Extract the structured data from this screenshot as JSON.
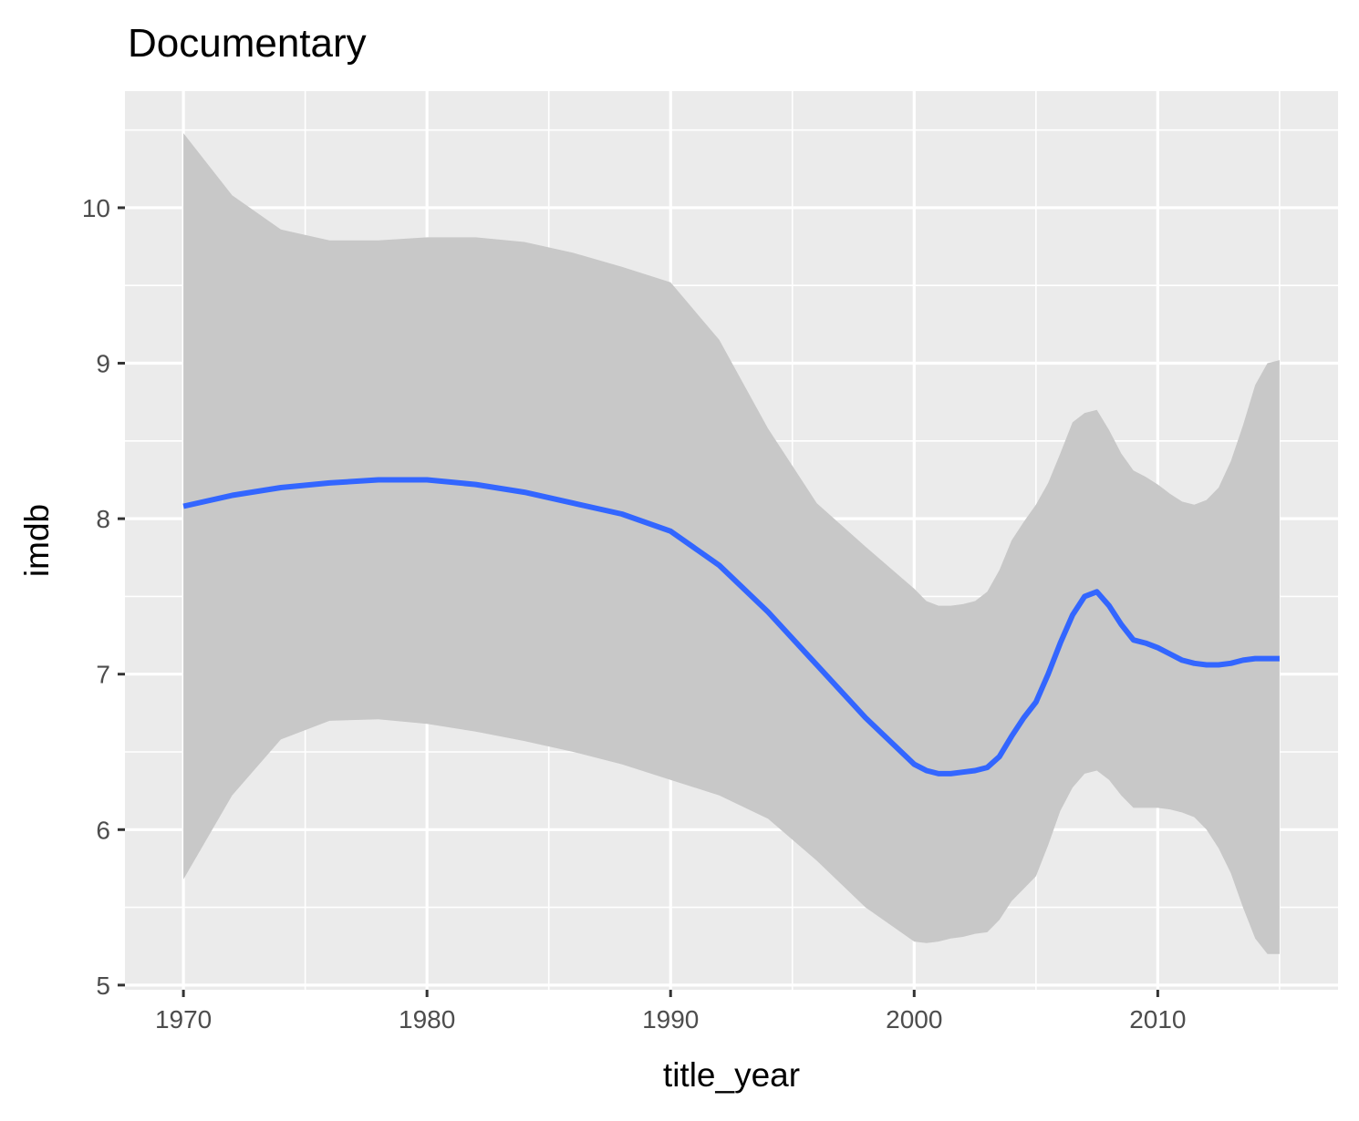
{
  "chart_data": {
    "type": "line",
    "title": "Documentary",
    "xlabel": "title_year",
    "ylabel": "imdb",
    "xlim": [
      1967.6,
      2017.4
    ],
    "ylim": [
      4.97,
      10.75
    ],
    "x_ticks": [
      1970,
      1980,
      1990,
      2000,
      2010
    ],
    "y_ticks": [
      5,
      6,
      7,
      8,
      9,
      10
    ],
    "x_tick_labels": [
      "1970",
      "1980",
      "1990",
      "2000",
      "2010"
    ],
    "y_tick_labels": [
      "5",
      "6",
      "7",
      "8",
      "9",
      "10"
    ],
    "grid": true,
    "legend": "none",
    "colors": {
      "panel": "#ebebeb",
      "grid": "#ffffff",
      "ribbon": "#c8c8c8",
      "line": "#3366ff",
      "axis_text": "#4d4d4d",
      "tick_mark": "#333333"
    },
    "series": [
      {
        "x": [
          1970,
          1972,
          1974,
          1976,
          1978,
          1980,
          1982,
          1984,
          1986,
          1988,
          1990,
          1992,
          1994,
          1996,
          1998,
          2000,
          2000.5,
          2001,
          2001.5,
          2002,
          2002.5,
          2003,
          2003.5,
          2004,
          2004.5,
          2005,
          2005.5,
          2006,
          2006.5,
          2007,
          2007.5,
          2008,
          2008.5,
          2009,
          2009.5,
          2010,
          2010.5,
          2011,
          2011.5,
          2012,
          2012.5,
          2013,
          2013.5,
          2014,
          2014.5,
          2015
        ],
        "y": [
          8.08,
          8.15,
          8.2,
          8.23,
          8.25,
          8.25,
          8.22,
          8.17,
          8.1,
          8.03,
          7.92,
          7.7,
          7.4,
          7.06,
          6.72,
          6.42,
          6.38,
          6.36,
          6.36,
          6.37,
          6.38,
          6.4,
          6.47,
          6.6,
          6.72,
          6.82,
          7.0,
          7.2,
          7.38,
          7.5,
          7.53,
          7.44,
          7.32,
          7.22,
          7.2,
          7.17,
          7.13,
          7.09,
          7.07,
          7.06,
          7.06,
          7.07,
          7.09,
          7.1,
          7.1,
          7.1
        ],
        "ymin": [
          5.68,
          6.22,
          6.58,
          6.7,
          6.71,
          6.68,
          6.63,
          6.57,
          6.5,
          6.42,
          6.32,
          6.22,
          6.07,
          5.8,
          5.5,
          5.28,
          5.27,
          5.28,
          5.3,
          5.31,
          5.33,
          5.34,
          5.42,
          5.54,
          5.62,
          5.7,
          5.9,
          6.12,
          6.27,
          6.36,
          6.38,
          6.32,
          6.22,
          6.14,
          6.14,
          6.14,
          6.13,
          6.11,
          6.08,
          6.0,
          5.88,
          5.72,
          5.5,
          5.3,
          5.2,
          5.2
        ],
        "ymax": [
          10.48,
          10.08,
          9.86,
          9.79,
          9.79,
          9.81,
          9.81,
          9.78,
          9.71,
          9.62,
          9.52,
          9.15,
          8.58,
          8.1,
          7.82,
          7.55,
          7.47,
          7.44,
          7.44,
          7.45,
          7.47,
          7.53,
          7.67,
          7.86,
          7.98,
          8.09,
          8.23,
          8.42,
          8.62,
          8.68,
          8.7,
          8.57,
          8.42,
          8.31,
          8.27,
          8.22,
          8.16,
          8.11,
          8.09,
          8.12,
          8.2,
          8.37,
          8.6,
          8.86,
          9.0,
          9.02
        ]
      }
    ]
  }
}
